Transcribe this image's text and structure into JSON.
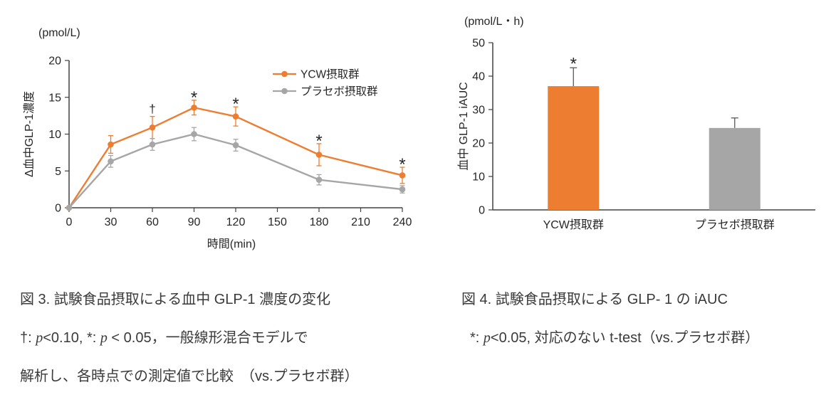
{
  "chart_data": [
    {
      "type": "line",
      "unit_label": "(pmol/L)",
      "ylabel": "Δ血中GLP-1濃度",
      "xlabel": "時間(min)",
      "xlim": [
        0,
        240
      ],
      "ylim": [
        0,
        20
      ],
      "xticks": [
        0,
        30,
        60,
        90,
        120,
        150,
        180,
        210,
        240
      ],
      "yticks": [
        0,
        5,
        10,
        15,
        20
      ],
      "grid": false,
      "legend_position": "top-right",
      "x": [
        0,
        30,
        60,
        90,
        120,
        180,
        240
      ],
      "series": [
        {
          "name": "YCW摂取群",
          "color": "#ED7D31",
          "values": [
            0,
            8.6,
            10.9,
            13.6,
            12.4,
            7.2,
            4.4
          ],
          "errors": [
            0,
            1.2,
            1.5,
            1.0,
            1.3,
            1.5,
            1.1
          ]
        },
        {
          "name": "プラセボ摂取群",
          "color": "#A6A6A6",
          "values": [
            0,
            6.3,
            8.6,
            10.0,
            8.5,
            3.8,
            2.5
          ],
          "errors": [
            0,
            0.8,
            0.8,
            0.9,
            0.8,
            0.7,
            0.5
          ]
        }
      ],
      "annotations": [
        {
          "x": 60,
          "text": "†"
        },
        {
          "x": 90,
          "text": "*"
        },
        {
          "x": 120,
          "text": "*"
        },
        {
          "x": 180,
          "text": "*"
        },
        {
          "x": 240,
          "text": "*"
        }
      ]
    },
    {
      "type": "bar",
      "unit_label": "(pmol/L・h)",
      "ylabel": "血中 GLP-1 iAUC",
      "ylim": [
        0,
        50
      ],
      "yticks": [
        0,
        10,
        20,
        30,
        40,
        50
      ],
      "grid": false,
      "categories": [
        "YCW摂取群",
        "プラセボ摂取群"
      ],
      "values": [
        37,
        24.5
      ],
      "errors": [
        5.5,
        3
      ],
      "colors": [
        "#ED7D31",
        "#A6A6A6"
      ],
      "annotations": [
        {
          "category_index": 0,
          "text": "*"
        }
      ]
    }
  ],
  "captions": {
    "fig3_title": "図 3. 試験食品摂取による血中 GLP-1 濃度の変化",
    "fig3_note_line1": [
      {
        "t": "†: ",
        "i": false
      },
      {
        "t": "p",
        "i": true
      },
      {
        "t": "<0.10, *: ",
        "i": false
      },
      {
        "t": "p",
        "i": true
      },
      {
        "t": " < 0.05，一般線形混合モデルで",
        "i": false
      }
    ],
    "fig3_note_line2": "解析し、各時点での測定値で比較　（vs.プラセボ群）",
    "fig4_title": "図 4. 試験食品摂取による GLP- 1 の iAUC",
    "fig4_note": [
      {
        "t": "*: ",
        "i": false
      },
      {
        "t": "p",
        "i": true
      },
      {
        "t": "<0.05, 対応のない t-test（vs.プラセボ群）",
        "i": false
      }
    ]
  },
  "colors": {
    "ycw_orange": "#ED7D31",
    "placebo_gray": "#A6A6A6",
    "axis": "#404040",
    "text": "#262626"
  }
}
